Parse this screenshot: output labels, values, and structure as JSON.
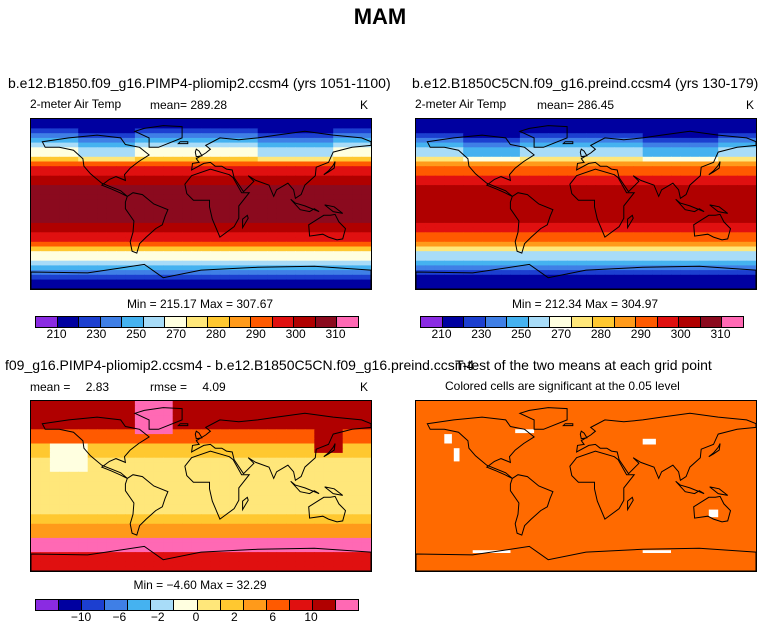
{
  "main_title": "MAM",
  "colors": {
    "temp_palette": [
      "#8a2be2",
      "#0000a0",
      "#1c3fd0",
      "#3f7fe6",
      "#45b2f0",
      "#a8dcf8",
      "#ffffe0",
      "#ffe77a",
      "#ffc830",
      "#ff9a1a",
      "#ff5a00",
      "#e01010",
      "#b00000",
      "#8b0a1e",
      "#ff69b4"
    ],
    "sig_color": "#ff6a00",
    "land_outline": "#000000"
  },
  "panels": [
    {
      "id": "pliomip",
      "title": "b.e12.B1850.f09_g16.PIMP4-pliomip2.ccsm4 (yrs 1051-1100)",
      "variable": "2-meter Air Temp",
      "mean_label": "mean=",
      "mean": "289.28",
      "units": "K",
      "minmax": "Min = 215.17 Max = 307.67",
      "tick_labels": [
        "210",
        "230",
        "250",
        "270",
        "280",
        "290",
        "300",
        "310"
      ]
    },
    {
      "id": "preind",
      "title": "b.e12.B1850C5CN.f09_g16.preind.ccsm4 (yrs 130-179)",
      "variable": "2-meter Air Temp",
      "mean_label": "mean=",
      "mean": "286.45",
      "units": "K",
      "minmax": "Min = 212.34 Max = 304.97",
      "tick_labels": [
        "210",
        "230",
        "250",
        "270",
        "280",
        "290",
        "300",
        "310"
      ]
    },
    {
      "id": "diff",
      "title": "f09_g16.PIMP4-pliomip2.ccsm4 - b.e12.B1850C5CN.f09_g16.preind.ccsm4",
      "mean_label": "mean =",
      "mean": "2.83",
      "rmse_label": "rmse =",
      "rmse": "4.09",
      "units": "K",
      "minmax": "Min =  −4.60 Max =  32.29",
      "tick_labels": [
        "−10",
        "−6",
        "−2",
        "0",
        "2",
        "6",
        "10"
      ]
    },
    {
      "id": "ttest",
      "title": "T-test of the two means at each grid point",
      "subtitle": "Colored cells are significant at the 0.05 level"
    }
  ],
  "chart_data": [
    {
      "type": "heatmap",
      "title": "b.e12.B1850.f09_g16.PIMP4-pliomip2.ccsm4 (yrs 1051-1100)",
      "field": "2-meter Air Temp",
      "units": "K",
      "mean": 289.28,
      "min": 215.17,
      "max": 307.67,
      "colorbar_levels": [
        210,
        220,
        230,
        240,
        250,
        260,
        270,
        280,
        285,
        290,
        295,
        300,
        305,
        310
      ],
      "colorbar_ticks": [
        210,
        230,
        250,
        270,
        280,
        290,
        300,
        310
      ]
    },
    {
      "type": "heatmap",
      "title": "b.e12.B1850C5CN.f09_g16.preind.ccsm4 (yrs 130-179)",
      "field": "2-meter Air Temp",
      "units": "K",
      "mean": 286.45,
      "min": 212.34,
      "max": 304.97,
      "colorbar_levels": [
        210,
        220,
        230,
        240,
        250,
        260,
        270,
        280,
        285,
        290,
        295,
        300,
        305,
        310
      ],
      "colorbar_ticks": [
        210,
        230,
        250,
        270,
        280,
        290,
        300,
        310
      ]
    },
    {
      "type": "heatmap",
      "title": "f09_g16.PIMP4-pliomip2.ccsm4 - b.e12.B1850C5CN.f09_g16.preind.ccsm4",
      "units": "K",
      "mean": 2.83,
      "rmse": 4.09,
      "min": -4.6,
      "max": 32.29,
      "colorbar_levels": [
        -10,
        -8,
        -6,
        -4,
        -2,
        -1,
        0,
        1,
        2,
        4,
        6,
        8,
        10
      ],
      "colorbar_ticks": [
        -10,
        -6,
        -2,
        0,
        2,
        6,
        10
      ]
    },
    {
      "type": "heatmap",
      "title": "T-test of the two means at each grid point",
      "subtitle": "Colored cells are significant at the 0.05 level",
      "significance_level": 0.05
    }
  ]
}
